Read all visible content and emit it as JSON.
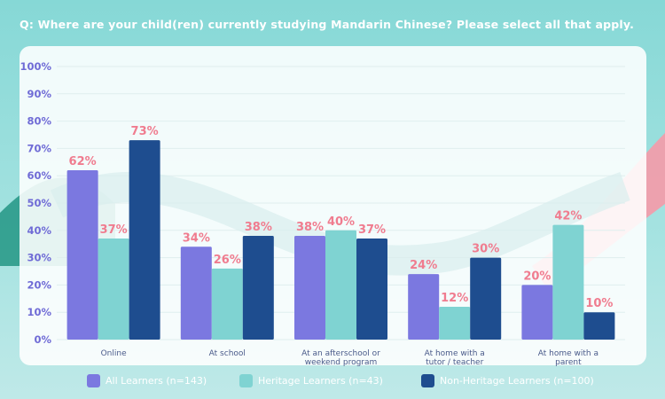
{
  "question": "Q: Where are your child(ren) currently studying Mandarin Chinese? Please select all that apply.",
  "colors": {
    "all": "#7b78e0",
    "heritage": "#7fd3d2",
    "nonheritage": "#1e4d8f",
    "label": "#f07c8f",
    "axis": "#6f6bd6"
  },
  "chart_data": {
    "type": "bar",
    "title": "Q: Where are your child(ren) currently studying Mandarin Chinese? Please select all that apply.",
    "categories": [
      [
        "Online"
      ],
      [
        "At school"
      ],
      [
        "At an afterschool or",
        "weekend program"
      ],
      [
        "At home with a",
        "tutor / teacher"
      ],
      [
        "At home with a",
        "parent"
      ]
    ],
    "series": [
      {
        "name": "All Learners (n=143)",
        "color_key": "all",
        "values": [
          62,
          34,
          38,
          24,
          20
        ]
      },
      {
        "name": "Heritage Learners (n=43)",
        "color_key": "heritage",
        "values": [
          37,
          26,
          40,
          12,
          42
        ]
      },
      {
        "name": "Non-Heritage Learners (n=100)",
        "color_key": "nonheritage",
        "values": [
          73,
          38,
          37,
          30,
          10
        ]
      }
    ],
    "y_ticks": [
      0,
      10,
      20,
      30,
      40,
      50,
      60,
      70,
      80,
      90,
      100
    ],
    "ylim": [
      0,
      100
    ],
    "unit": "%",
    "grid": true,
    "legend_position": "bottom"
  },
  "legend": {
    "items": [
      "All Learners (n=143)",
      "Heritage Learners (n=43)",
      "Non-Heritage Learners (n=100)"
    ]
  }
}
